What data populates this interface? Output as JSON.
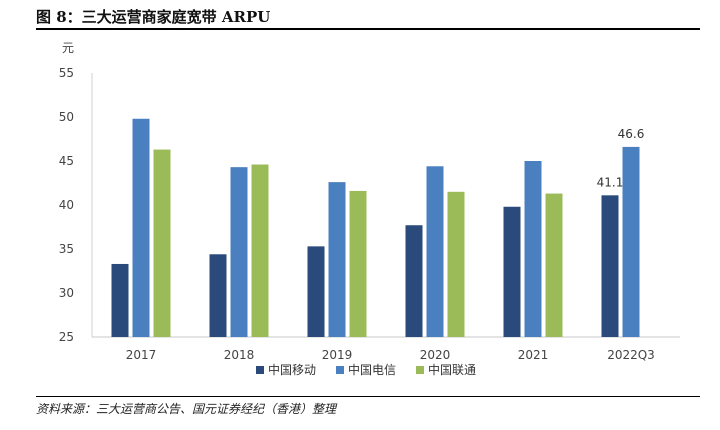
{
  "title": "图 8：三大运营商家庭宽带 ARPU",
  "source": "资料来源：三大运营商公告、国元证券经纪（香港）整理",
  "chart_data": {
    "type": "bar",
    "unit_label": "元",
    "categories": [
      "2017",
      "2018",
      "2019",
      "2020",
      "2021",
      "2022Q3"
    ],
    "series": [
      {
        "name": "中国移动",
        "color": "#2a4a7b",
        "values": [
          33.3,
          34.4,
          35.3,
          37.7,
          39.8,
          41.1
        ]
      },
      {
        "name": "中国电信",
        "color": "#4a7fc0",
        "values": [
          49.8,
          44.3,
          42.6,
          44.4,
          45.0,
          46.6
        ]
      },
      {
        "name": "中国联通",
        "color": "#9bbb59",
        "values": [
          46.3,
          44.6,
          41.6,
          41.5,
          41.3,
          null
        ]
      }
    ],
    "ylim": [
      25,
      55
    ],
    "yticks": [
      25,
      30,
      35,
      40,
      45,
      50,
      55
    ],
    "data_labels": [
      {
        "series": 0,
        "index": 5,
        "text": "41.1"
      },
      {
        "series": 1,
        "index": 5,
        "text": "46.6"
      }
    ],
    "legend_position": "bottom",
    "grid": false
  }
}
